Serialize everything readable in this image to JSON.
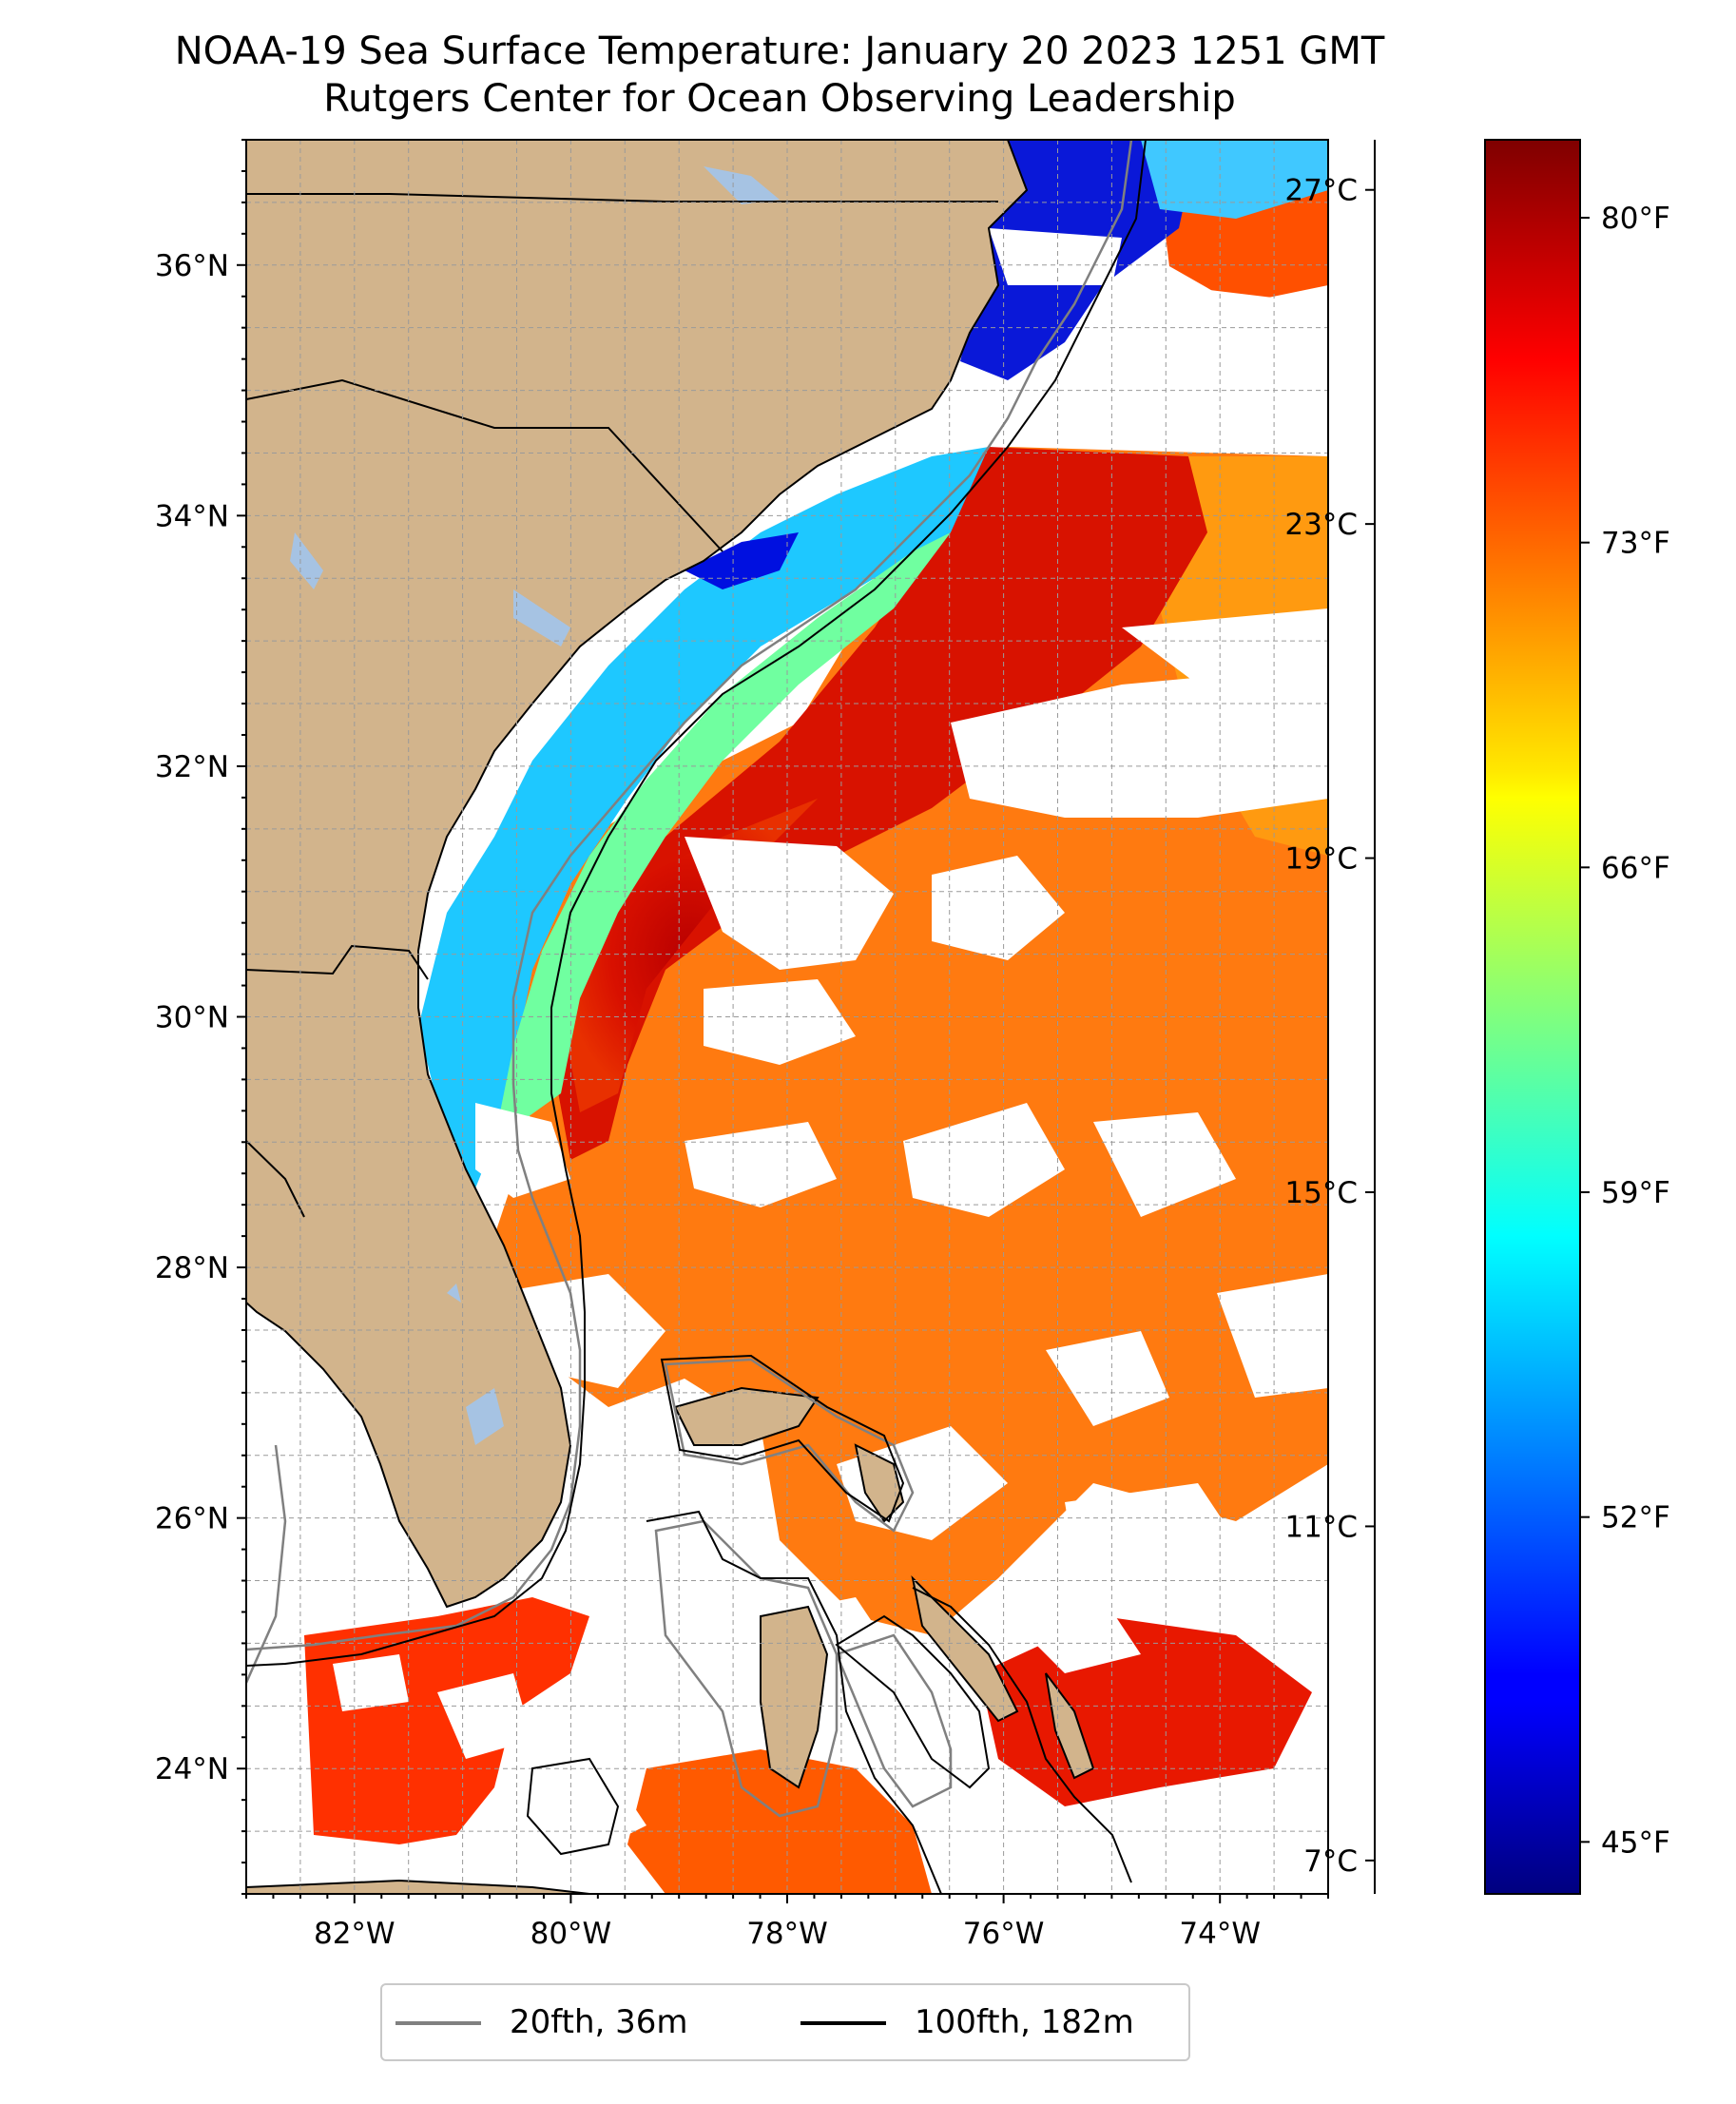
{
  "title": {
    "line1": "NOAA-19 Sea Surface Temperature: January 20 2023 1251 GMT",
    "line2": "Rutgers Center for Ocean Observing Leadership"
  },
  "map": {
    "lon_range": [
      -83,
      -73
    ],
    "lat_range": [
      23,
      37
    ],
    "lon_ticks": [
      {
        "value": -82,
        "label": "82°W"
      },
      {
        "value": -80,
        "label": "80°W"
      },
      {
        "value": -78,
        "label": "78°W"
      },
      {
        "value": -76,
        "label": "76°W"
      },
      {
        "value": -74,
        "label": "74°W"
      }
    ],
    "lat_ticks": [
      {
        "value": 24,
        "label": "24°N"
      },
      {
        "value": 26,
        "label": "26°N"
      },
      {
        "value": 28,
        "label": "28°N"
      },
      {
        "value": 30,
        "label": "30°N"
      },
      {
        "value": 32,
        "label": "32°N"
      },
      {
        "value": 34,
        "label": "34°N"
      },
      {
        "value": 36,
        "label": "36°N"
      }
    ],
    "colors": {
      "land": "#d2b48c",
      "water_bodies": "#a6c3e3",
      "cloud_nodata": "#ffffff",
      "isobath_20fth": "#808080",
      "isobath_100fth": "#000000"
    }
  },
  "colorbar": {
    "colormap": "jet",
    "celsius_ticks": [
      {
        "value": 27,
        "label": "27°C"
      },
      {
        "value": 23,
        "label": "23°C"
      },
      {
        "value": 19,
        "label": "19°C"
      },
      {
        "value": 15,
        "label": "15°C"
      },
      {
        "value": 11,
        "label": "11°C"
      },
      {
        "value": 7,
        "label": "7°C"
      }
    ],
    "fahrenheit_ticks": [
      {
        "value": 80,
        "label": "80°F"
      },
      {
        "value": 73,
        "label": "73°F"
      },
      {
        "value": 66,
        "label": "66°F"
      },
      {
        "value": 59,
        "label": "59°F"
      },
      {
        "value": 52,
        "label": "52°F"
      },
      {
        "value": 45,
        "label": "45°F"
      }
    ]
  },
  "legend": {
    "entries": [
      {
        "label": "20fth, 36m",
        "color": "#808080"
      },
      {
        "label": "100fth, 182m",
        "color": "#000000"
      }
    ]
  }
}
